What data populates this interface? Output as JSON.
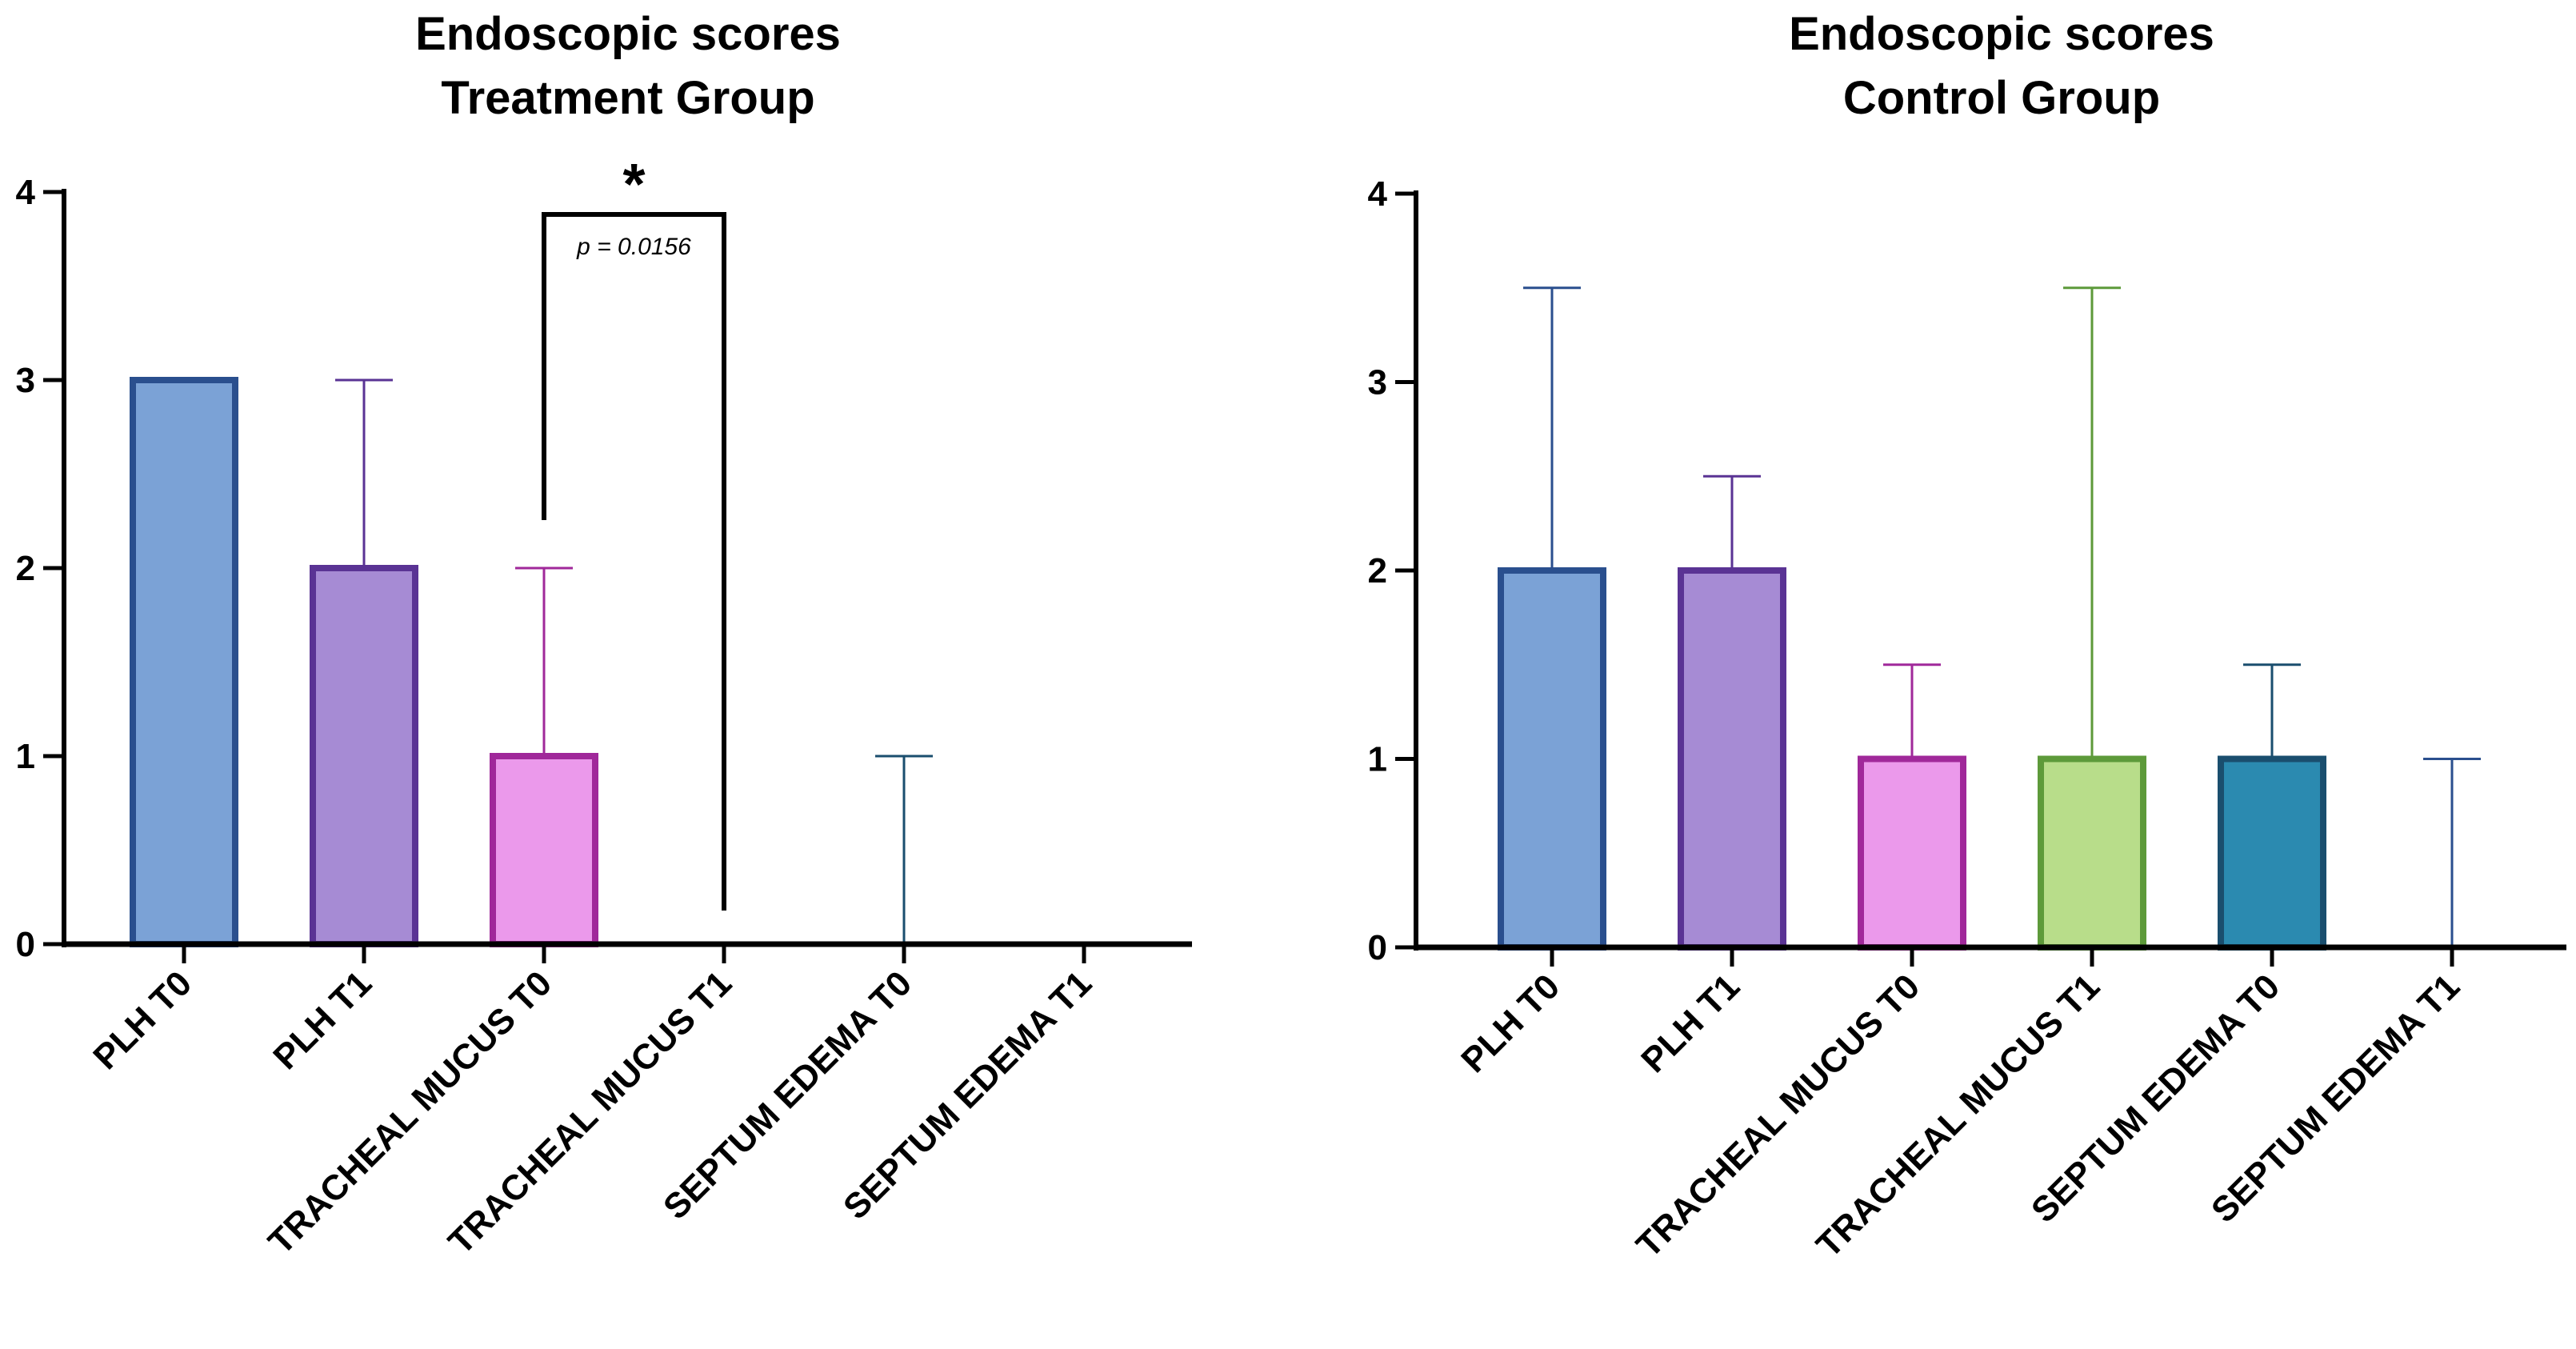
{
  "chart_data": [
    {
      "type": "bar",
      "title": [
        "Endoscopic scores",
        "Treatment Group"
      ],
      "xlabel": "",
      "ylabel": "",
      "ylim": [
        0,
        4
      ],
      "yticks": [
        "0",
        "1",
        "2",
        "3",
        "4"
      ],
      "categories": [
        "PLH T0",
        "PLH T1",
        "TRACHEAL MUCUS T0",
        "TRACHEAL MUCUS T1",
        "SEPTUM EDEMA T0",
        "SEPTUM EDEMA T1"
      ],
      "values": [
        3,
        2,
        1,
        0,
        0,
        0
      ],
      "error_upper": [
        3,
        3,
        2,
        0,
        1,
        0
      ],
      "fill_colors": [
        "#7ba2d6",
        "#a68bd4",
        "#eb99eb",
        "#b8dd8a",
        "#2b8ab0",
        "#7ba2d6"
      ],
      "edge_colors": [
        "#2a4f8e",
        "#5a3394",
        "#a0289a",
        "#5d9a3a",
        "#1a4e6e",
        "#2a4f8e"
      ],
      "significance": {
        "from": 2,
        "to": 3,
        "label": "*",
        "p_value": "p = 0.0156"
      }
    },
    {
      "type": "bar",
      "title": [
        "Endoscopic scores",
        "Control Group"
      ],
      "xlabel": "",
      "ylabel": "",
      "ylim": [
        0,
        4
      ],
      "yticks": [
        "0",
        "1",
        "2",
        "3",
        "4"
      ],
      "categories": [
        "PLH T0",
        "PLH T1",
        "TRACHEAL MUCUS T0",
        "TRACHEAL MUCUS T1",
        "SEPTUM EDEMA T0",
        "SEPTUM EDEMA T1"
      ],
      "values": [
        2,
        2,
        1,
        1,
        1,
        0
      ],
      "error_upper": [
        3.5,
        2.5,
        1.5,
        3.5,
        1.5,
        1
      ],
      "fill_colors": [
        "#7ba2d6",
        "#a68bd4",
        "#eb99eb",
        "#b8dd8a",
        "#2b8ab0",
        "#7ba2d6"
      ],
      "edge_colors": [
        "#2a4f8e",
        "#5a3394",
        "#a0289a",
        "#5d9a3a",
        "#1a4e6e",
        "#2a4f8e"
      ]
    }
  ]
}
